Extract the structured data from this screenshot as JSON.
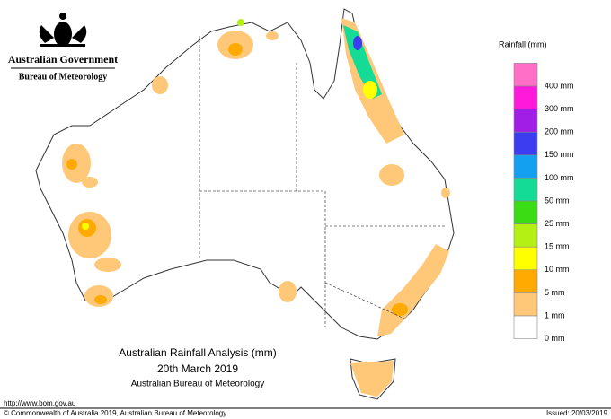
{
  "header": {
    "agency": "Australian Government",
    "bureau": "Bureau of Meteorology"
  },
  "legend": {
    "title": "Rainfall (mm)",
    "items": [
      {
        "label": "400 mm",
        "color": "#ff6ec7"
      },
      {
        "label": "300 mm",
        "color": "#ff1adb"
      },
      {
        "label": "200 mm",
        "color": "#a01ee6"
      },
      {
        "label": "150 mm",
        "color": "#3c3cf0"
      },
      {
        "label": "100 mm",
        "color": "#14a0f0"
      },
      {
        "label": "50 mm",
        "color": "#14dc96"
      },
      {
        "label": "25 mm",
        "color": "#3cdc14"
      },
      {
        "label": "15 mm",
        "color": "#b4f014"
      },
      {
        "label": "10 mm",
        "color": "#ffff00"
      },
      {
        "label": "5 mm",
        "color": "#ffaa00"
      },
      {
        "label": "1 mm",
        "color": "#ffc878"
      },
      {
        "label": "0 mm",
        "color": "#ffffff"
      }
    ]
  },
  "caption": {
    "title": "Australian Rainfall Analysis (mm)",
    "date": "20th March 2019",
    "source": "Australian Bureau of Meteorology"
  },
  "footer": {
    "url": "http://www.bom.gov.au",
    "copyright": "© Commonwealth of Australia 2019, Australian Bureau of Meteorology",
    "issued": "Issued: 20/03/2019"
  }
}
